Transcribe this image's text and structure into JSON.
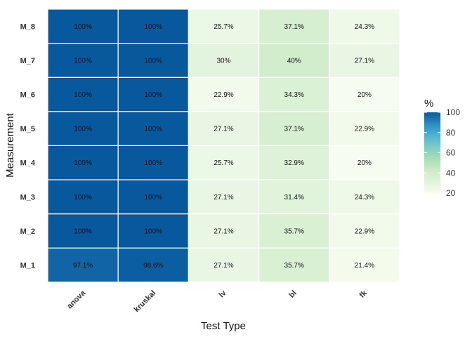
{
  "chart_data": {
    "type": "heatmap",
    "xlabel": "Test Type",
    "ylabel": "Measurement",
    "columns": [
      "anova",
      "kruskal",
      "lv",
      "bl",
      "fk"
    ],
    "rows": [
      "M_1",
      "M_2",
      "M_3",
      "M_4",
      "M_5",
      "M_6",
      "M_7",
      "M_8"
    ],
    "values": [
      [
        97.1,
        98.6,
        27.1,
        35.7,
        21.4
      ],
      [
        100,
        100,
        27.1,
        35.7,
        22.9
      ],
      [
        100,
        100,
        27.1,
        31.4,
        24.3
      ],
      [
        100,
        100,
        25.7,
        32.9,
        20
      ],
      [
        100,
        100,
        27.1,
        37.1,
        22.9
      ],
      [
        100,
        100,
        22.9,
        34.3,
        20
      ],
      [
        100,
        100,
        30,
        40,
        27.1
      ],
      [
        100,
        100,
        25.7,
        37.1,
        24.3
      ]
    ],
    "labels": [
      [
        "97.1%",
        "98.6%",
        "27.1%",
        "35.7%",
        "21.4%"
      ],
      [
        "100%",
        "100%",
        "27.1%",
        "35.7%",
        "22.9%"
      ],
      [
        "100%",
        "100%",
        "27.1%",
        "31.4%",
        "24.3%"
      ],
      [
        "100%",
        "100%",
        "25.7%",
        "32.9%",
        "20%"
      ],
      [
        "100%",
        "100%",
        "27.1%",
        "37.1%",
        "22.9%"
      ],
      [
        "100%",
        "100%",
        "22.9%",
        "34.3%",
        "20%"
      ],
      [
        "100%",
        "100%",
        "30%",
        "40%",
        "27.1%"
      ],
      [
        "100%",
        "100%",
        "25.7%",
        "37.1%",
        "24.3%"
      ]
    ],
    "legend": {
      "title": "%",
      "range": [
        20,
        100
      ],
      "ticks": [
        20,
        40,
        60,
        80,
        100
      ],
      "placement": "right"
    },
    "colorscale": [
      "#f7fcf0",
      "#e0f3db",
      "#ccebc5",
      "#a8ddb5",
      "#7bccc4",
      "#4eb3d3",
      "#2b8cbe",
      "#08589e"
    ],
    "grid": false
  }
}
